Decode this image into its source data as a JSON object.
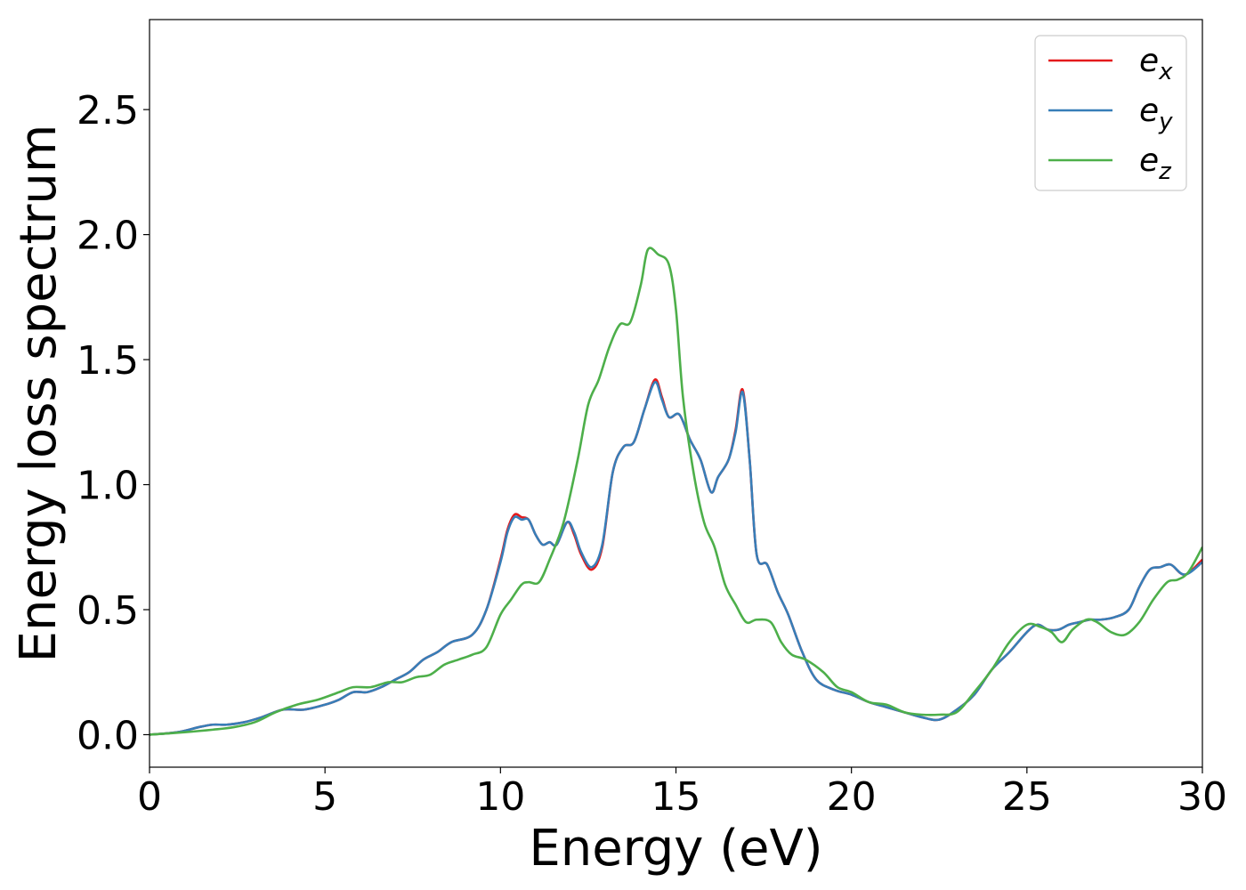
{
  "chart_data": {
    "type": "line",
    "title": "",
    "xlabel": "Energy (eV)",
    "ylabel": "Energy loss spectrum",
    "xlim": [
      0,
      30
    ],
    "ylim": [
      -0.13,
      2.86
    ],
    "xticks": [
      0,
      5,
      10,
      15,
      20,
      25,
      30
    ],
    "xtick_labels": [
      "0",
      "5",
      "10",
      "15",
      "20",
      "25",
      "30"
    ],
    "yticks": [
      0.0,
      0.5,
      1.0,
      1.5,
      2.0,
      2.5
    ],
    "ytick_labels": [
      "0.0",
      "0.5",
      "1.0",
      "1.5",
      "2.0",
      "2.5"
    ],
    "grid": false,
    "legend_position": "top-right",
    "series": [
      {
        "name": "e_x",
        "legend_base": "e",
        "legend_sub": "x",
        "color": "#e41a1c",
        "x": [
          0,
          0.8,
          1.4,
          1.8,
          2.2,
          2.7,
          3.2,
          3.8,
          4.4,
          5,
          5.4,
          5.8,
          6.2,
          6.6,
          7,
          7.4,
          7.8,
          8.2,
          8.6,
          9.2,
          9.6,
          10,
          10.2,
          10.4,
          10.6,
          10.8,
          11,
          11.2,
          11.4,
          11.6,
          11.9,
          12.1,
          12.3,
          12.6,
          12.9,
          13.2,
          13.5,
          13.8,
          14.1,
          14.4,
          14.6,
          14.8,
          15.1,
          15.4,
          15.7,
          16,
          16.2,
          16.5,
          16.7,
          16.9,
          17.1,
          17.3,
          17.6,
          17.9,
          18.2,
          18.6,
          19,
          19.5,
          20,
          20.5,
          21,
          21.5,
          22,
          22.5,
          23,
          23.5,
          24,
          24.5,
          25,
          25.3,
          25.6,
          25.9,
          26.2,
          26.5,
          26.8,
          27.1,
          27.5,
          27.9,
          28.2,
          28.5,
          28.8,
          29.1,
          29.5,
          30
        ],
        "values": [
          0,
          0.01,
          0.03,
          0.04,
          0.04,
          0.05,
          0.07,
          0.1,
          0.1,
          0.12,
          0.14,
          0.17,
          0.17,
          0.19,
          0.22,
          0.25,
          0.3,
          0.33,
          0.37,
          0.4,
          0.5,
          0.7,
          0.82,
          0.88,
          0.87,
          0.86,
          0.8,
          0.76,
          0.77,
          0.76,
          0.85,
          0.8,
          0.72,
          0.66,
          0.75,
          1.05,
          1.15,
          1.17,
          1.3,
          1.42,
          1.35,
          1.27,
          1.28,
          1.18,
          1.1,
          0.97,
          1.03,
          1.1,
          1.22,
          1.38,
          1.1,
          0.72,
          0.68,
          0.57,
          0.48,
          0.33,
          0.22,
          0.18,
          0.16,
          0.13,
          0.11,
          0.09,
          0.07,
          0.06,
          0.1,
          0.16,
          0.26,
          0.33,
          0.41,
          0.44,
          0.42,
          0.42,
          0.44,
          0.45,
          0.46,
          0.46,
          0.47,
          0.5,
          0.59,
          0.66,
          0.67,
          0.68,
          0.64,
          0.7
        ]
      },
      {
        "name": "e_y",
        "legend_base": "e",
        "legend_sub": "y",
        "color": "#377eb8",
        "x": [
          0,
          0.8,
          1.4,
          1.8,
          2.2,
          2.7,
          3.2,
          3.8,
          4.4,
          5,
          5.4,
          5.8,
          6.2,
          6.6,
          7,
          7.4,
          7.8,
          8.2,
          8.6,
          9.2,
          9.6,
          10,
          10.2,
          10.4,
          10.6,
          10.8,
          11,
          11.2,
          11.4,
          11.6,
          11.9,
          12.1,
          12.3,
          12.6,
          12.9,
          13.2,
          13.5,
          13.8,
          14.1,
          14.4,
          14.6,
          14.8,
          15.1,
          15.4,
          15.7,
          16,
          16.2,
          16.5,
          16.7,
          16.9,
          17.1,
          17.3,
          17.6,
          17.9,
          18.2,
          18.6,
          19,
          19.5,
          20,
          20.5,
          21,
          21.5,
          22,
          22.5,
          23,
          23.5,
          24,
          24.5,
          25,
          25.3,
          25.6,
          25.9,
          26.2,
          26.5,
          26.8,
          27.1,
          27.5,
          27.9,
          28.2,
          28.5,
          28.8,
          29.1,
          29.5,
          30
        ],
        "values": [
          0,
          0.01,
          0.03,
          0.04,
          0.04,
          0.05,
          0.07,
          0.1,
          0.1,
          0.12,
          0.14,
          0.17,
          0.17,
          0.19,
          0.22,
          0.25,
          0.3,
          0.33,
          0.37,
          0.4,
          0.5,
          0.69,
          0.81,
          0.87,
          0.86,
          0.86,
          0.8,
          0.76,
          0.77,
          0.76,
          0.85,
          0.81,
          0.73,
          0.67,
          0.76,
          1.05,
          1.15,
          1.17,
          1.3,
          1.41,
          1.34,
          1.27,
          1.28,
          1.18,
          1.1,
          0.97,
          1.03,
          1.1,
          1.21,
          1.37,
          1.1,
          0.72,
          0.68,
          0.57,
          0.48,
          0.33,
          0.22,
          0.18,
          0.16,
          0.13,
          0.11,
          0.09,
          0.07,
          0.06,
          0.1,
          0.16,
          0.26,
          0.33,
          0.41,
          0.44,
          0.42,
          0.42,
          0.44,
          0.45,
          0.46,
          0.46,
          0.47,
          0.5,
          0.59,
          0.66,
          0.67,
          0.68,
          0.64,
          0.69
        ]
      },
      {
        "name": "e_z",
        "legend_base": "e",
        "legend_sub": "z",
        "color": "#4daf4a",
        "x": [
          0,
          1,
          1.8,
          2.4,
          3,
          3.6,
          4.2,
          4.8,
          5.4,
          5.8,
          6.3,
          6.8,
          7.2,
          7.6,
          8,
          8.4,
          8.8,
          9.2,
          9.6,
          10,
          10.3,
          10.6,
          10.8,
          11.1,
          11.4,
          11.8,
          12.2,
          12.5,
          12.8,
          13.1,
          13.4,
          13.7,
          14,
          14.2,
          14.5,
          14.8,
          15,
          15.2,
          15.5,
          15.8,
          16.1,
          16.4,
          16.7,
          17,
          17.3,
          17.7,
          18,
          18.3,
          18.7,
          19.2,
          19.6,
          20,
          20.5,
          21,
          21.5,
          22,
          22.5,
          23,
          23.5,
          24,
          24.5,
          25,
          25.4,
          25.7,
          26,
          26.3,
          26.7,
          27,
          27.4,
          27.8,
          28.2,
          28.6,
          29,
          29.3,
          29.6,
          30
        ],
        "values": [
          0,
          0.01,
          0.02,
          0.03,
          0.05,
          0.09,
          0.12,
          0.14,
          0.17,
          0.19,
          0.19,
          0.21,
          0.21,
          0.23,
          0.24,
          0.28,
          0.3,
          0.32,
          0.35,
          0.48,
          0.54,
          0.6,
          0.61,
          0.61,
          0.7,
          0.85,
          1.1,
          1.32,
          1.42,
          1.55,
          1.64,
          1.65,
          1.8,
          1.94,
          1.92,
          1.88,
          1.7,
          1.35,
          1.05,
          0.85,
          0.75,
          0.6,
          0.52,
          0.45,
          0.46,
          0.45,
          0.37,
          0.32,
          0.3,
          0.25,
          0.19,
          0.17,
          0.13,
          0.12,
          0.09,
          0.08,
          0.08,
          0.09,
          0.17,
          0.26,
          0.37,
          0.44,
          0.43,
          0.41,
          0.37,
          0.42,
          0.46,
          0.45,
          0.41,
          0.4,
          0.45,
          0.54,
          0.61,
          0.62,
          0.65,
          0.75
        ]
      }
    ]
  }
}
